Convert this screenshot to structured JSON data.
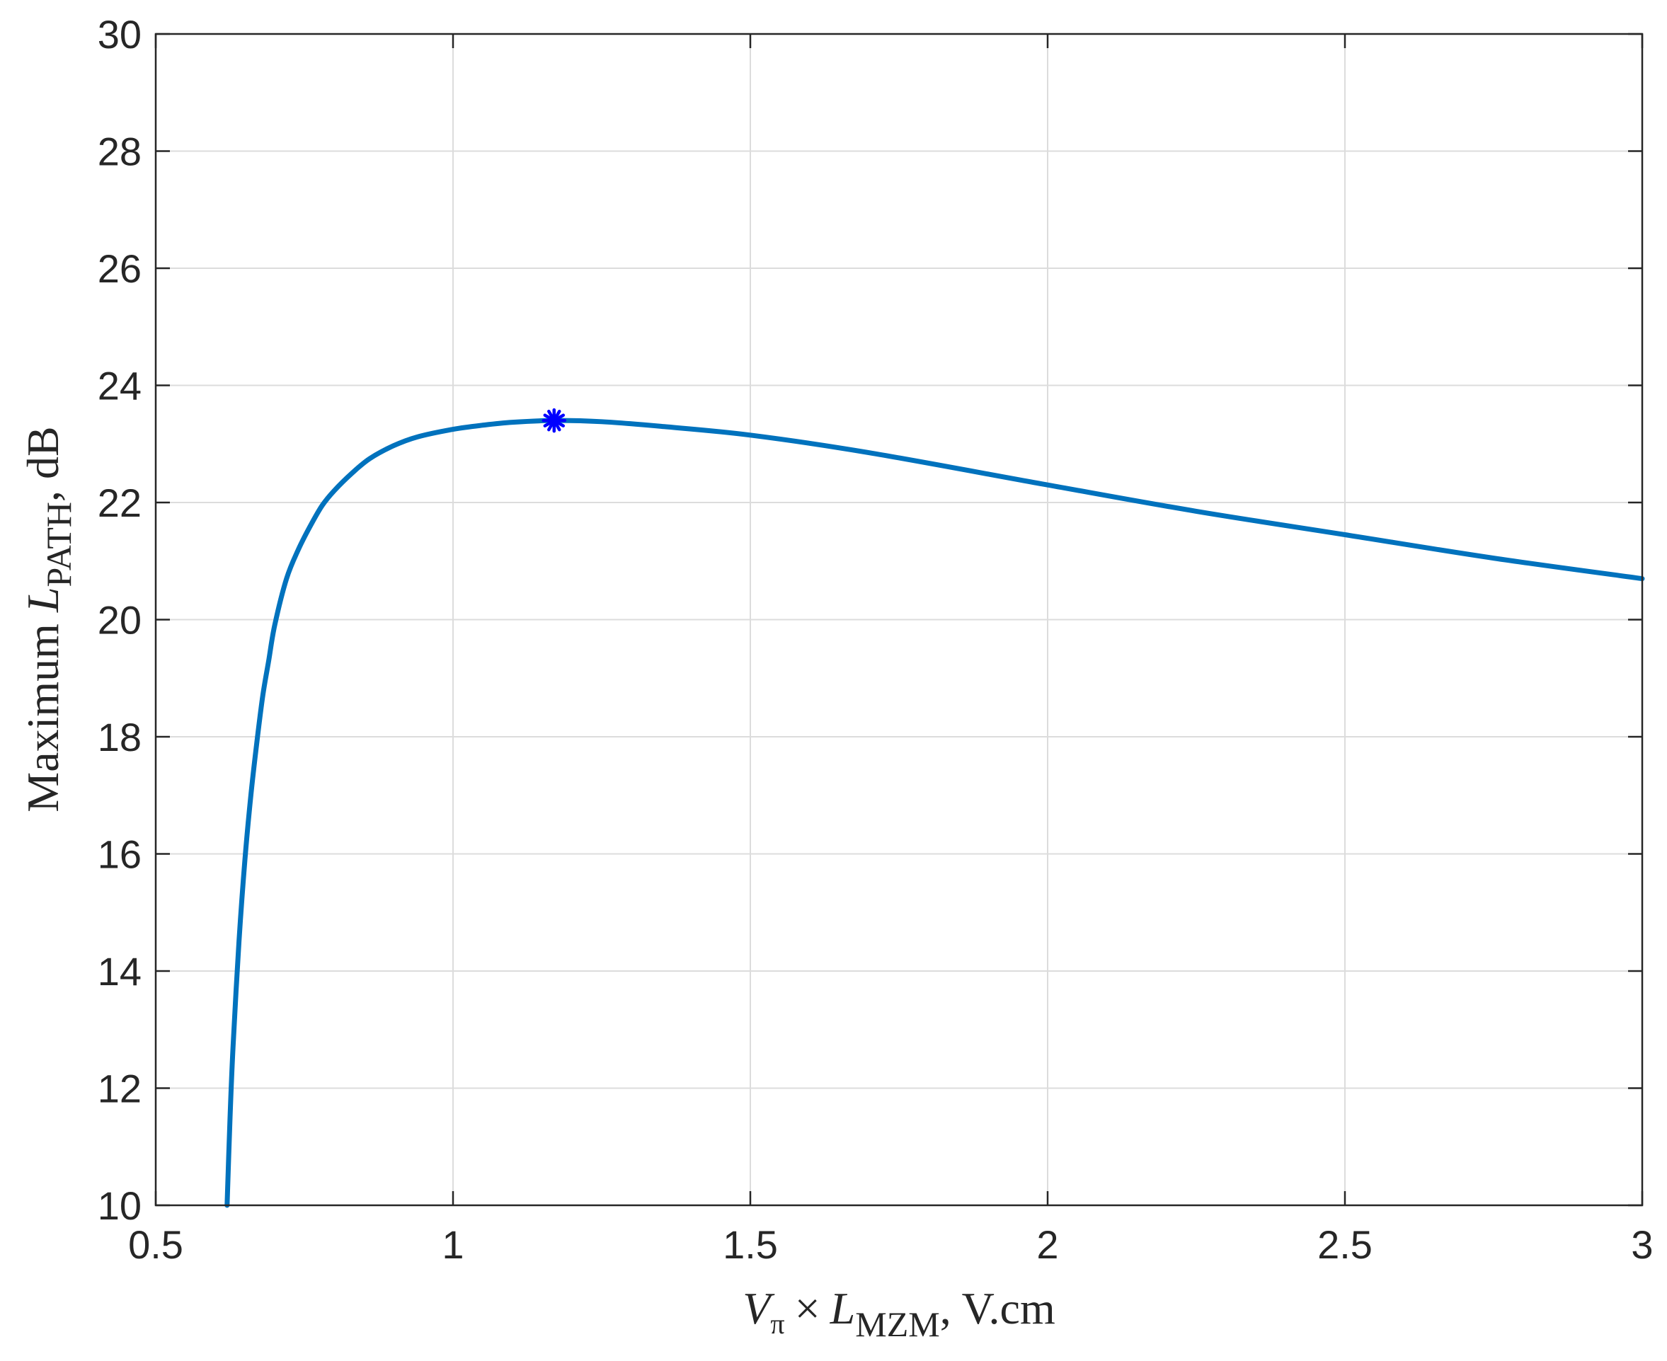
{
  "chart_data": {
    "type": "line",
    "title": "",
    "xlabel": "Vπ × LMZM, V.cm",
    "ylabel": "Maximum LPATH, dB",
    "xlabel_parts": {
      "v": "V",
      "v_sub": "π",
      "times": "×",
      "l": "L",
      "l_sub": "MZM",
      "unit": ", V.cm"
    },
    "ylabel_parts": {
      "prefix": "Maximum ",
      "l": "L",
      "l_sub": "PATH",
      "unit": ", dB"
    },
    "xlim": [
      0.5,
      3
    ],
    "ylim": [
      10,
      30
    ],
    "x_ticks": [
      0.5,
      1,
      1.5,
      2,
      2.5,
      3
    ],
    "x_tick_labels": [
      "0.5",
      "1",
      "1.5",
      "2",
      "2.5",
      "3"
    ],
    "y_ticks": [
      10,
      12,
      14,
      16,
      18,
      20,
      22,
      24,
      26,
      28,
      30
    ],
    "y_tick_labels": [
      "10",
      "12",
      "14",
      "16",
      "18",
      "20",
      "22",
      "24",
      "26",
      "28",
      "30"
    ],
    "grid": true,
    "series": [
      {
        "color": "#0072BD",
        "x": [
          0.62,
          0.625,
          0.63,
          0.64,
          0.65,
          0.66,
          0.67,
          0.68,
          0.69,
          0.7,
          0.72,
          0.74,
          0.76,
          0.78,
          0.8,
          0.83,
          0.86,
          0.9,
          0.94,
          1.0,
          1.05,
          1.1,
          1.17,
          1.25,
          1.35,
          1.5,
          1.7,
          2.0,
          2.25,
          2.5,
          2.75,
          3.0
        ],
        "y": [
          10.0,
          11.5,
          12.7,
          14.5,
          15.9,
          17.0,
          17.9,
          18.7,
          19.3,
          19.9,
          20.7,
          21.2,
          21.6,
          21.95,
          22.2,
          22.5,
          22.75,
          22.97,
          23.12,
          23.25,
          23.32,
          23.37,
          23.4,
          23.38,
          23.3,
          23.15,
          22.85,
          22.3,
          21.85,
          21.45,
          21.05,
          20.7
        ]
      }
    ],
    "marker": {
      "x": 1.17,
      "y": 23.4,
      "symbol": "asterisk",
      "color": "#0000FF"
    }
  }
}
